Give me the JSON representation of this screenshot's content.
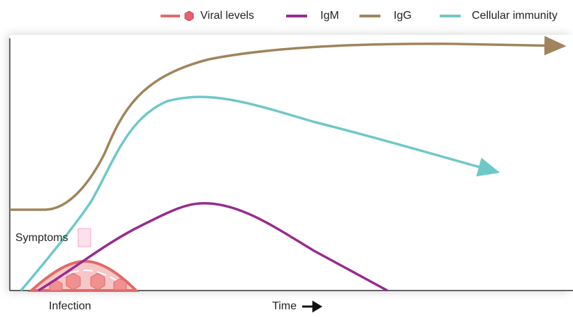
{
  "legend": [
    "Viral levels",
    "IgM",
    "IgG",
    "Cellular immunity"
  ],
  "labels": {
    "symptoms": "Symptoms",
    "infection": "Infection",
    "time": "Time"
  }
}
